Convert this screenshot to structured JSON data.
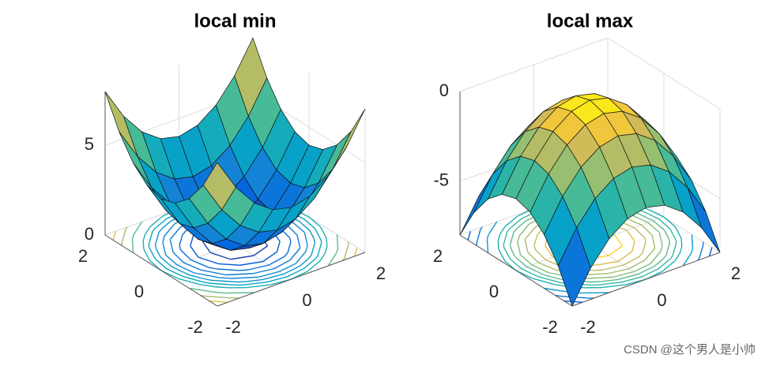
{
  "chart_data": [
    {
      "type": "surface",
      "title": "local min",
      "colormap": "parula",
      "grid": true,
      "x": [
        -2,
        -1.5,
        -1,
        -0.5,
        0,
        0.5,
        1,
        1.5,
        2
      ],
      "y": [
        -2,
        -1.5,
        -1,
        -0.5,
        0,
        0.5,
        1,
        1.5,
        2
      ],
      "z": [
        [
          8,
          6.25,
          5,
          4.25,
          4,
          4.25,
          5,
          6.25,
          8
        ],
        [
          6.25,
          4.5,
          3.25,
          2.5,
          2.25,
          2.5,
          3.25,
          4.5,
          6.25
        ],
        [
          5,
          3.25,
          2,
          1.25,
          1,
          1.25,
          2,
          3.25,
          5
        ],
        [
          4.25,
          2.5,
          1.25,
          0.5,
          0.25,
          0.5,
          1.25,
          2.5,
          4.25
        ],
        [
          4,
          2.25,
          1,
          0.25,
          0,
          0.25,
          1,
          2.25,
          4
        ],
        [
          4.25,
          2.5,
          1.25,
          0.5,
          0.25,
          0.5,
          1.25,
          2.5,
          4.25
        ],
        [
          5,
          3.25,
          2,
          1.25,
          1,
          1.25,
          2,
          3.25,
          5
        ],
        [
          6.25,
          4.5,
          3.25,
          2.5,
          2.25,
          2.5,
          3.25,
          4.5,
          6.25
        ],
        [
          8,
          6.25,
          5,
          4.25,
          4,
          4.25,
          5,
          6.25,
          8
        ]
      ],
      "contour_levels": [
        0.5,
        1,
        1.5,
        2,
        2.5,
        3,
        3.5,
        4,
        5,
        6,
        7
      ],
      "xlim": [
        -2,
        2
      ],
      "ylim": [
        -2,
        2
      ],
      "zlim": [
        0,
        8
      ],
      "xticks": [
        -2,
        0,
        2
      ],
      "yticks": [
        -2,
        0,
        2
      ],
      "zticks": [
        0,
        5
      ]
    },
    {
      "type": "surface",
      "title": "local max",
      "colormap": "parula",
      "grid": true,
      "x": [
        -2,
        -1.5,
        -1,
        -0.5,
        0,
        0.5,
        1,
        1.5,
        2
      ],
      "y": [
        -2,
        -1.5,
        -1,
        -0.5,
        0,
        0.5,
        1,
        1.5,
        2
      ],
      "z": [
        [
          -8,
          -6.25,
          -5,
          -4.25,
          -4,
          -4.25,
          -5,
          -6.25,
          -8
        ],
        [
          -6.25,
          -4.5,
          -3.25,
          -2.5,
          -2.25,
          -2.5,
          -3.25,
          -4.5,
          -6.25
        ],
        [
          -5,
          -3.25,
          -2,
          -1.25,
          -1,
          -1.25,
          -2,
          -3.25,
          -5
        ],
        [
          -4.25,
          -2.5,
          -1.25,
          -0.5,
          -0.25,
          -0.5,
          -1.25,
          -2.5,
          -4.25
        ],
        [
          -4,
          -2.25,
          -1,
          -0.25,
          0,
          -0.25,
          -1,
          -2.25,
          -4
        ],
        [
          -4.25,
          -2.5,
          -1.25,
          -0.5,
          -0.25,
          -0.5,
          -1.25,
          -2.5,
          -4.25
        ],
        [
          -5,
          -3.25,
          -2,
          -1.25,
          -1,
          -1.25,
          -2,
          -3.25,
          -5
        ],
        [
          -6.25,
          -4.5,
          -3.25,
          -2.5,
          -2.25,
          -2.5,
          -3.25,
          -4.5,
          -6.25
        ],
        [
          -8,
          -6.25,
          -5,
          -4.25,
          -4,
          -4.25,
          -5,
          -6.25,
          -8
        ]
      ],
      "contour_levels": [
        -7,
        -6,
        -5,
        -4,
        -3.5,
        -3,
        -2.5,
        -2,
        -1.5,
        -1,
        -0.5
      ],
      "xlim": [
        -2,
        2
      ],
      "ylim": [
        -2,
        2
      ],
      "zlim": [
        -8,
        0
      ],
      "xticks": [
        -2,
        0,
        2
      ],
      "yticks": [
        -2,
        0,
        2
      ],
      "zticks": [
        -5,
        0
      ]
    }
  ],
  "watermark": "CSDN @这个男人是小帅"
}
